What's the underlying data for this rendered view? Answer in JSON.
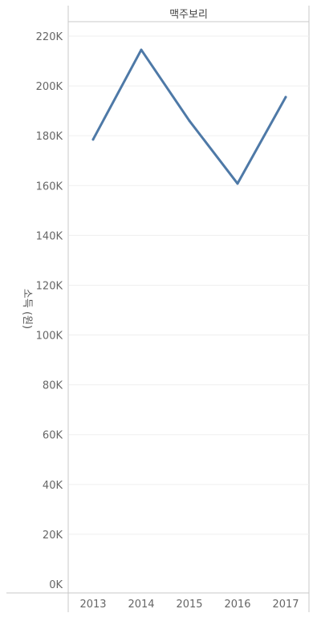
{
  "chart_data": {
    "type": "line",
    "panel_header": "맥주보리",
    "ylabel": "소득 (원)",
    "x": [
      "2013",
      "2014",
      "2015",
      "2016",
      "2017"
    ],
    "series": [
      {
        "values": [
          178500,
          214500,
          186000,
          160800,
          195500
        ]
      }
    ],
    "ylim": [
      0,
      225000
    ],
    "yticks": [
      0,
      20000,
      40000,
      60000,
      80000,
      100000,
      120000,
      140000,
      160000,
      180000,
      200000,
      220000
    ],
    "ytick_labels": [
      "0K",
      "20K",
      "40K",
      "60K",
      "80K",
      "100K",
      "120K",
      "140K",
      "160K",
      "180K",
      "200K",
      "220K"
    ],
    "grid": true,
    "line_color": "#4e79a7"
  }
}
